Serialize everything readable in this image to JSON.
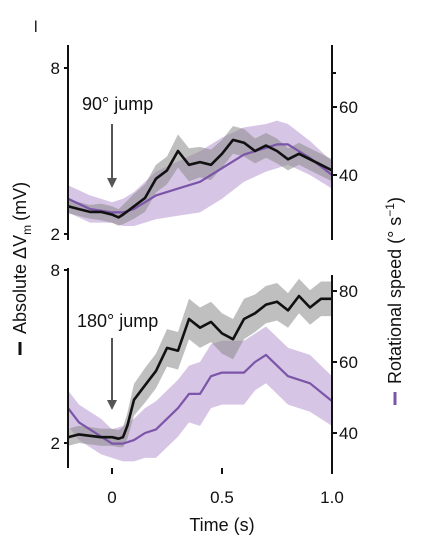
{
  "figure": {
    "panel_label": "l",
    "left_axis_label": "Absolute ΔV",
    "left_axis_subscript": "m",
    "left_axis_unit": "(mV)",
    "right_axis_label": "Rotational speed (° s",
    "right_axis_superscript": "−1",
    "right_axis_close": ")",
    "x_axis_label": "Time (s)",
    "colors": {
      "vm_line": "#111111",
      "vm_band": "#8a8a8a",
      "speed_line": "#7b55a8",
      "speed_band": "#c9b2dc",
      "arrow": "#555555"
    }
  },
  "chart_data": [
    {
      "type": "line",
      "annotation": "90° jump",
      "event_time": 0,
      "xlim": [
        -0.2,
        1.0
      ],
      "x_ticks": [
        0,
        0.5,
        1.0
      ],
      "x_tick_labels": [
        "0",
        "0.5",
        "1.0"
      ],
      "y_left": {
        "ticks": [
          2,
          8
        ],
        "tick_labels": [
          "2",
          "8"
        ],
        "lim": [
          2,
          8
        ]
      },
      "y_right": {
        "ticks": [
          40,
          60
        ],
        "tick_labels": [
          "40",
          "60"
        ],
        "lim": [
          25,
          80
        ]
      },
      "series": [
        {
          "axis": "left",
          "x": [
            -0.2,
            -0.15,
            -0.1,
            -0.05,
            0.0,
            0.03,
            0.05,
            0.1,
            0.15,
            0.2,
            0.25,
            0.3,
            0.35,
            0.4,
            0.45,
            0.5,
            0.55,
            0.6,
            0.65,
            0.7,
            0.75,
            0.8,
            0.85,
            0.9,
            0.95,
            1.0
          ],
          "y": [
            3.0,
            2.9,
            2.8,
            2.8,
            2.7,
            2.6,
            2.7,
            3.0,
            3.3,
            4.0,
            4.3,
            5.0,
            4.5,
            4.6,
            4.5,
            4.9,
            5.4,
            5.3,
            5.0,
            5.2,
            5.0,
            4.7,
            4.9,
            4.7,
            4.5,
            4.3
          ],
          "band": [
            0.25,
            0.25,
            0.25,
            0.3,
            0.3,
            0.3,
            0.35,
            0.45,
            0.5,
            0.5,
            0.5,
            0.6,
            0.6,
            0.55,
            0.55,
            0.5,
            0.5,
            0.5,
            0.45,
            0.45,
            0.45,
            0.4,
            0.4,
            0.4,
            0.4,
            0.4
          ]
        },
        {
          "axis": "right",
          "x": [
            -0.2,
            -0.1,
            0.0,
            0.05,
            0.1,
            0.15,
            0.2,
            0.3,
            0.4,
            0.5,
            0.6,
            0.7,
            0.75,
            0.8,
            0.9,
            1.0
          ],
          "y": [
            33,
            30,
            29,
            29,
            30,
            32,
            34,
            36,
            38,
            42,
            46,
            48,
            49,
            49,
            45,
            40
          ],
          "band": [
            4,
            4,
            3,
            4,
            5,
            6,
            7,
            8,
            9,
            9,
            8,
            7,
            7,
            6,
            5,
            4
          ]
        }
      ]
    },
    {
      "type": "line",
      "annotation": "180° jump",
      "event_time": 0,
      "xlim": [
        -0.2,
        1.0
      ],
      "x_ticks": [
        0,
        0.5,
        1.0
      ],
      "x_tick_labels": [
        "0",
        "0.5",
        "1.0"
      ],
      "y_left": {
        "ticks": [
          2,
          8
        ],
        "tick_labels": [
          "2",
          "8"
        ],
        "lim": [
          1.5,
          8
        ]
      },
      "y_right": {
        "ticks": [
          40,
          60,
          80
        ],
        "tick_labels": [
          "40",
          "60",
          "80"
        ],
        "lim": [
          32,
          84
        ]
      },
      "series": [
        {
          "axis": "left",
          "x": [
            -0.2,
            -0.15,
            -0.1,
            -0.05,
            0.0,
            0.03,
            0.05,
            0.07,
            0.1,
            0.15,
            0.2,
            0.25,
            0.3,
            0.35,
            0.4,
            0.45,
            0.5,
            0.55,
            0.6,
            0.65,
            0.7,
            0.75,
            0.8,
            0.85,
            0.9,
            0.95,
            1.0
          ],
          "y": [
            2.2,
            2.3,
            2.25,
            2.2,
            2.2,
            2.15,
            2.2,
            2.6,
            3.5,
            4.0,
            4.5,
            5.3,
            5.2,
            6.3,
            6.0,
            6.2,
            5.8,
            5.6,
            6.3,
            6.5,
            6.8,
            6.9,
            6.6,
            7.1,
            6.7,
            7.0,
            7.0
          ],
          "band": [
            0.3,
            0.3,
            0.3,
            0.3,
            0.3,
            0.3,
            0.35,
            0.45,
            0.55,
            0.6,
            0.6,
            0.65,
            0.65,
            0.7,
            0.7,
            0.7,
            0.7,
            0.7,
            0.7,
            0.65,
            0.65,
            0.65,
            0.6,
            0.6,
            0.6,
            0.6,
            0.6
          ]
        },
        {
          "axis": "right",
          "x": [
            -0.2,
            -0.15,
            -0.1,
            -0.05,
            0.0,
            0.05,
            0.1,
            0.15,
            0.2,
            0.3,
            0.35,
            0.4,
            0.45,
            0.5,
            0.6,
            0.65,
            0.7,
            0.75,
            0.8,
            0.9,
            1.0
          ],
          "y": [
            47,
            43,
            41,
            39,
            37,
            37,
            38,
            40,
            41,
            47,
            51,
            51,
            56,
            57,
            57,
            60,
            62,
            59,
            56,
            54,
            49
          ],
          "band": [
            5,
            5,
            5,
            5,
            4,
            5,
            6,
            7,
            8,
            8,
            8,
            9,
            9,
            9,
            9,
            8,
            8,
            8,
            8,
            8,
            7
          ]
        }
      ]
    }
  ]
}
